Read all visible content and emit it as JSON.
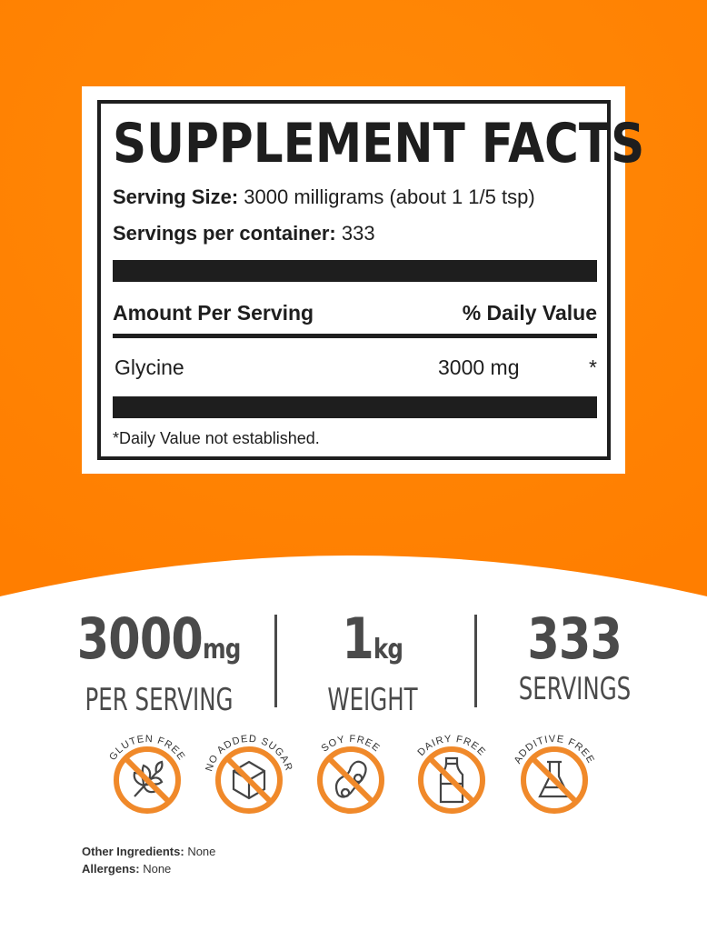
{
  "colors": {
    "orange": "#FF8400",
    "badge_orange": "#F0892A",
    "text_dark": "#1e1e1e",
    "stat_gray": "#4a4a4a"
  },
  "facts": {
    "title": "SUPPLEMENT FACTS",
    "serving_size_label": "Serving Size:",
    "serving_size_value": "3000 milligrams (about 1 1/5 tsp)",
    "servings_label": "Servings per container:",
    "servings_value": "333",
    "amount_header": "Amount Per Serving",
    "dv_header": "% Daily Value",
    "ingredient": {
      "name": "Glycine",
      "amount": "3000 mg",
      "dv": "*"
    },
    "footnote": "*Daily Value not established."
  },
  "stats": [
    {
      "value": "3000",
      "unit": "mg",
      "label": "PER SERVING"
    },
    {
      "value": "1",
      "unit": "kg",
      "label": "WEIGHT"
    },
    {
      "value": "333",
      "unit": "",
      "label": "SERVINGS"
    }
  ],
  "badges": [
    {
      "label": "GLUTEN FREE",
      "icon": "wheat-icon"
    },
    {
      "label": "NO ADDED SUGAR",
      "icon": "sugar-cube-icon"
    },
    {
      "label": "SOY FREE",
      "icon": "soybean-icon"
    },
    {
      "label": "DAIRY FREE",
      "icon": "milk-bottle-icon"
    },
    {
      "label": "ADDITIVE FREE",
      "icon": "flask-icon"
    }
  ],
  "footer": {
    "other_label": "Other Ingredients:",
    "other_value": "None",
    "allergens_label": "Allergens:",
    "allergens_value": "None"
  }
}
